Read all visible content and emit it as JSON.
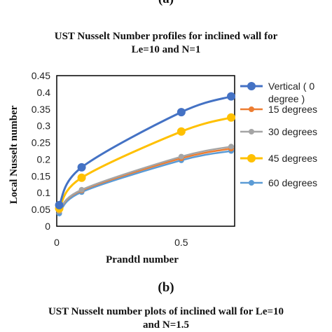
{
  "figure": {
    "top_label": "(a)",
    "title_line1": "UST Nusselt Number profiles for inclined wall for",
    "title_line2": "Le=10 and N=1",
    "panel_b_label": "(b)",
    "panel_b_title_line1": "UST Nusselt number plots of inclined wall for Le=10",
    "panel_b_title_line2": "and N=1.5"
  },
  "chart_data": {
    "type": "line",
    "title": "UST Nusselt Number profiles for inclined wall for Le=10 and N=1",
    "xlabel": "Prandtl number",
    "ylabel": "Local Nusselt number",
    "xlim": [
      0,
      0.7
    ],
    "ylim": [
      0,
      0.45
    ],
    "x_ticks": [
      "0",
      "0.5"
    ],
    "y_ticks": [
      "0",
      "0.05",
      "0.1",
      "0.15",
      "0.2",
      "0.25",
      "0.3",
      "0.35",
      "0.4",
      "0.45"
    ],
    "grid": false,
    "legend_position": "right",
    "x": [
      0.01,
      0.1,
      0.5,
      0.7
    ],
    "series": [
      {
        "name": "Vertical ( 0 degree )",
        "legend_line1": "Vertical ( 0",
        "legend_line2": "degree )",
        "color": "#4472C4",
        "values": [
          0.063,
          0.176,
          0.341,
          0.388
        ]
      },
      {
        "name": "15 degrees",
        "color": "#ED7D31",
        "values": [
          0.045,
          0.107,
          0.203,
          0.232
        ]
      },
      {
        "name": "30 degrees",
        "color": "#A5A5A5",
        "values": [
          0.046,
          0.109,
          0.208,
          0.238
        ]
      },
      {
        "name": "45 degrees",
        "color": "#FFC000",
        "values": [
          0.053,
          0.145,
          0.283,
          0.325
        ]
      },
      {
        "name": "60 degrees",
        "color": "#5B9BD5",
        "values": [
          0.038,
          0.102,
          0.197,
          0.225
        ]
      }
    ]
  }
}
